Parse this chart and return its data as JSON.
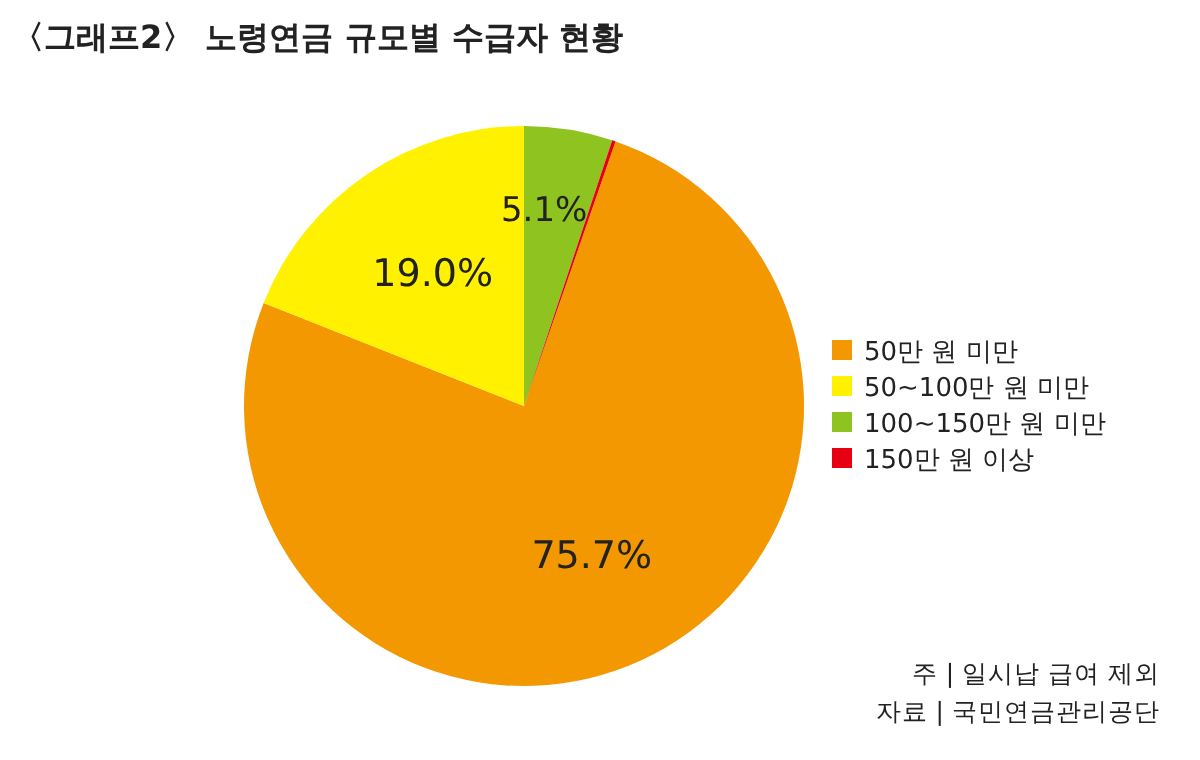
{
  "chart_data": {
    "type": "pie",
    "title": "〈그래프2〉 노령연금 규모별 수급자 현황",
    "categories": [
      "50만 원 미만",
      "50~100만 원 미만",
      "100~150만 원 미만",
      "150만 원 이상"
    ],
    "values": [
      75.7,
      19.0,
      5.1,
      0.2
    ],
    "colors": [
      "#f39800",
      "#fff100",
      "#8fc31f",
      "#e60012"
    ],
    "value_labels": [
      "75.7%",
      "19.0%",
      "5.1%",
      null
    ],
    "legend": "right",
    "annotations": [
      "주 | 일시납 급여 제외",
      "자료 | 국민연금관리공단"
    ]
  }
}
